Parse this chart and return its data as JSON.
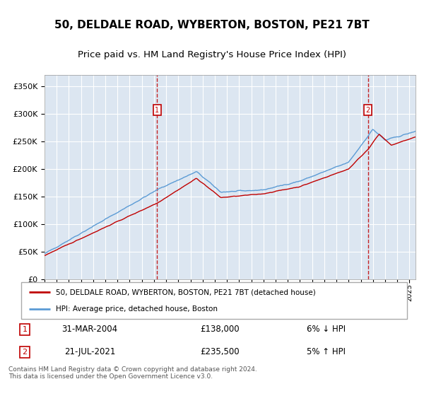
{
  "title": "50, DELDALE ROAD, WYBERTON, BOSTON, PE21 7BT",
  "subtitle": "Price paid vs. HM Land Registry's House Price Index (HPI)",
  "legend_line1": "50, DELDALE ROAD, WYBERTON, BOSTON, PE21 7BT (detached house)",
  "legend_line2": "HPI: Average price, detached house, Boston",
  "footnote": "Contains HM Land Registry data © Crown copyright and database right 2024.\nThis data is licensed under the Open Government Licence v3.0.",
  "sale1_date": "31-MAR-2004",
  "sale1_price": "£138,000",
  "sale1_hpi": "6% ↓ HPI",
  "sale2_date": "21-JUL-2021",
  "sale2_price": "£235,500",
  "sale2_hpi": "5% ↑ HPI",
  "hpi_color": "#5b9bd5",
  "price_color": "#c00000",
  "plot_bg": "#dce6f1",
  "ylim": [
    0,
    370000
  ],
  "yticks": [
    0,
    50000,
    100000,
    150000,
    200000,
    250000,
    300000,
    350000
  ],
  "grid_color": "#ffffff",
  "sale1_year": 2004.25,
  "sale2_year": 2021.583
}
